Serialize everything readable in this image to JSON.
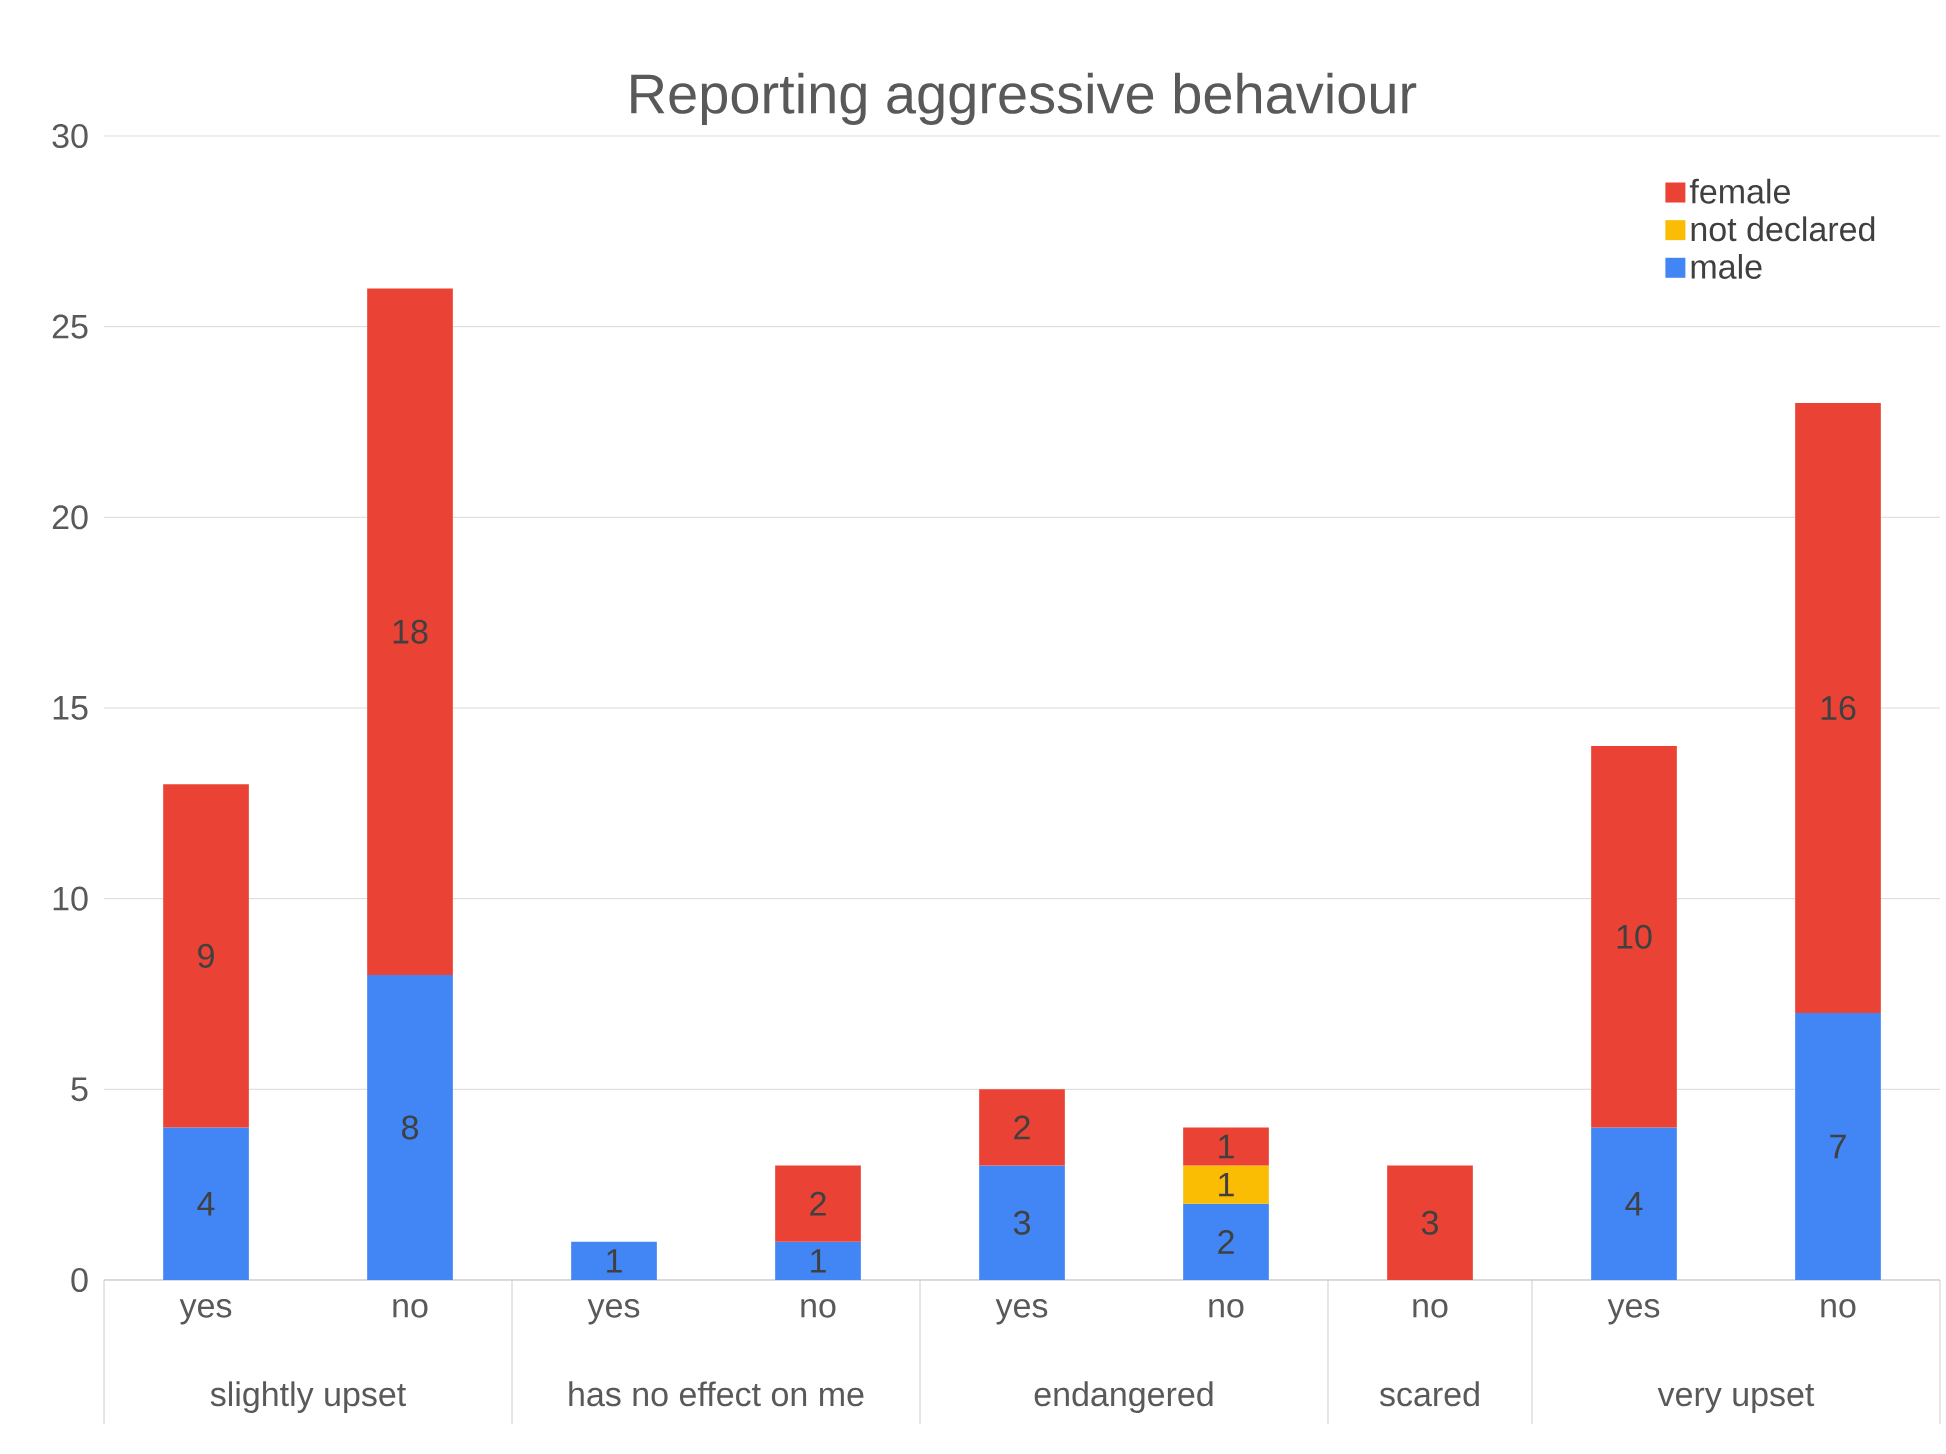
{
  "chart_data": {
    "type": "bar",
    "title": "Reporting aggressive behaviour",
    "stacked": true,
    "categories": [
      "yes",
      "no",
      "yes",
      "no",
      "yes",
      "no",
      "no",
      "yes",
      "no"
    ],
    "annotations": [
      "slightly upset",
      "has no effect on me",
      "endangered",
      "scared",
      "very upset"
    ],
    "series": [
      {
        "name": "male",
        "color": "#4285f4",
        "values": [
          4,
          8,
          1,
          1,
          3,
          2,
          null,
          4,
          7
        ]
      },
      {
        "name": "not declared",
        "color": "#fbbc04",
        "values": [
          null,
          null,
          null,
          null,
          null,
          1,
          null,
          null,
          null
        ]
      },
      {
        "name": "female",
        "color": "#ea4335",
        "values": [
          9,
          18,
          null,
          2,
          2,
          1,
          3,
          10,
          16
        ]
      }
    ],
    "ylim": [
      0,
      30
    ],
    "yticks": [
      0,
      5,
      10,
      15,
      20,
      25,
      30
    ],
    "grid": "y",
    "legend": "top right",
    "data_labels": true
  }
}
